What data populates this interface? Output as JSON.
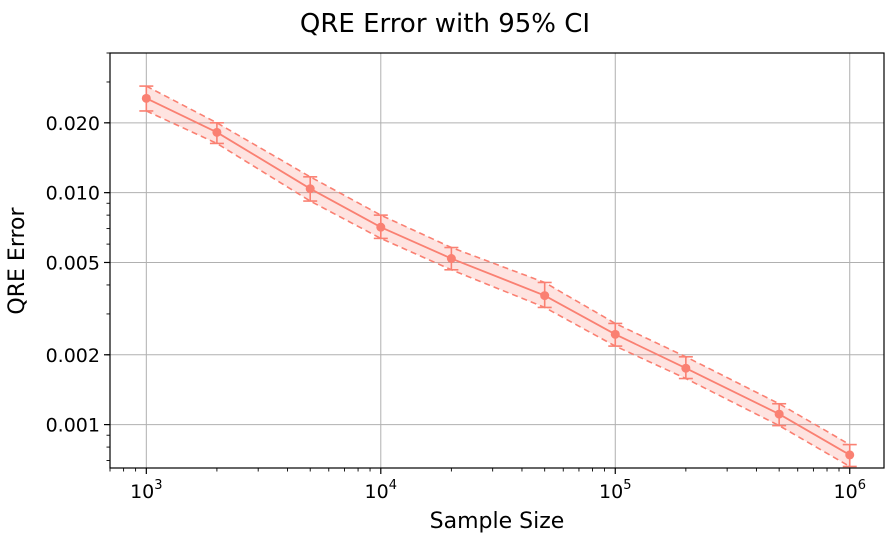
{
  "chart_data": {
    "type": "line",
    "title": "QRE Error with 95% CI",
    "xlabel": "Sample Size",
    "ylabel": "QRE Error",
    "xscale": "log",
    "yscale": "log",
    "xlim": [
      700,
      1400000
    ],
    "ylim": [
      0.00065,
      0.04
    ],
    "grid": true,
    "color": "#fa8072",
    "xticks": [
      {
        "value": 1000,
        "base": "10",
        "exp": "3"
      },
      {
        "value": 10000,
        "base": "10",
        "exp": "4"
      },
      {
        "value": 100000,
        "base": "10",
        "exp": "5"
      },
      {
        "value": 1000000,
        "base": "10",
        "exp": "6"
      }
    ],
    "yticks": [
      {
        "value": 0.02,
        "label": "0.020"
      },
      {
        "value": 0.01,
        "label": "0.010"
      },
      {
        "value": 0.005,
        "label": "0.005"
      },
      {
        "value": 0.002,
        "label": "0.002"
      },
      {
        "value": 0.001,
        "label": "0.001"
      }
    ],
    "series": [
      {
        "x": [
          1000,
          2000,
          5000,
          10000,
          20000,
          50000,
          100000,
          200000,
          500000,
          1000000
        ],
        "y": [
          0.0255,
          0.0182,
          0.0104,
          0.0071,
          0.0052,
          0.0036,
          0.00245,
          0.00175,
          0.00111,
          0.00074
        ],
        "ci_lower": [
          0.0225,
          0.0163,
          0.0092,
          0.00635,
          0.00465,
          0.0032,
          0.00218,
          0.00158,
          0.00099,
          0.00066
        ],
        "ci_upper": [
          0.0288,
          0.02,
          0.0117,
          0.008,
          0.0058,
          0.0041,
          0.00273,
          0.00196,
          0.00123,
          0.00082
        ]
      }
    ]
  }
}
